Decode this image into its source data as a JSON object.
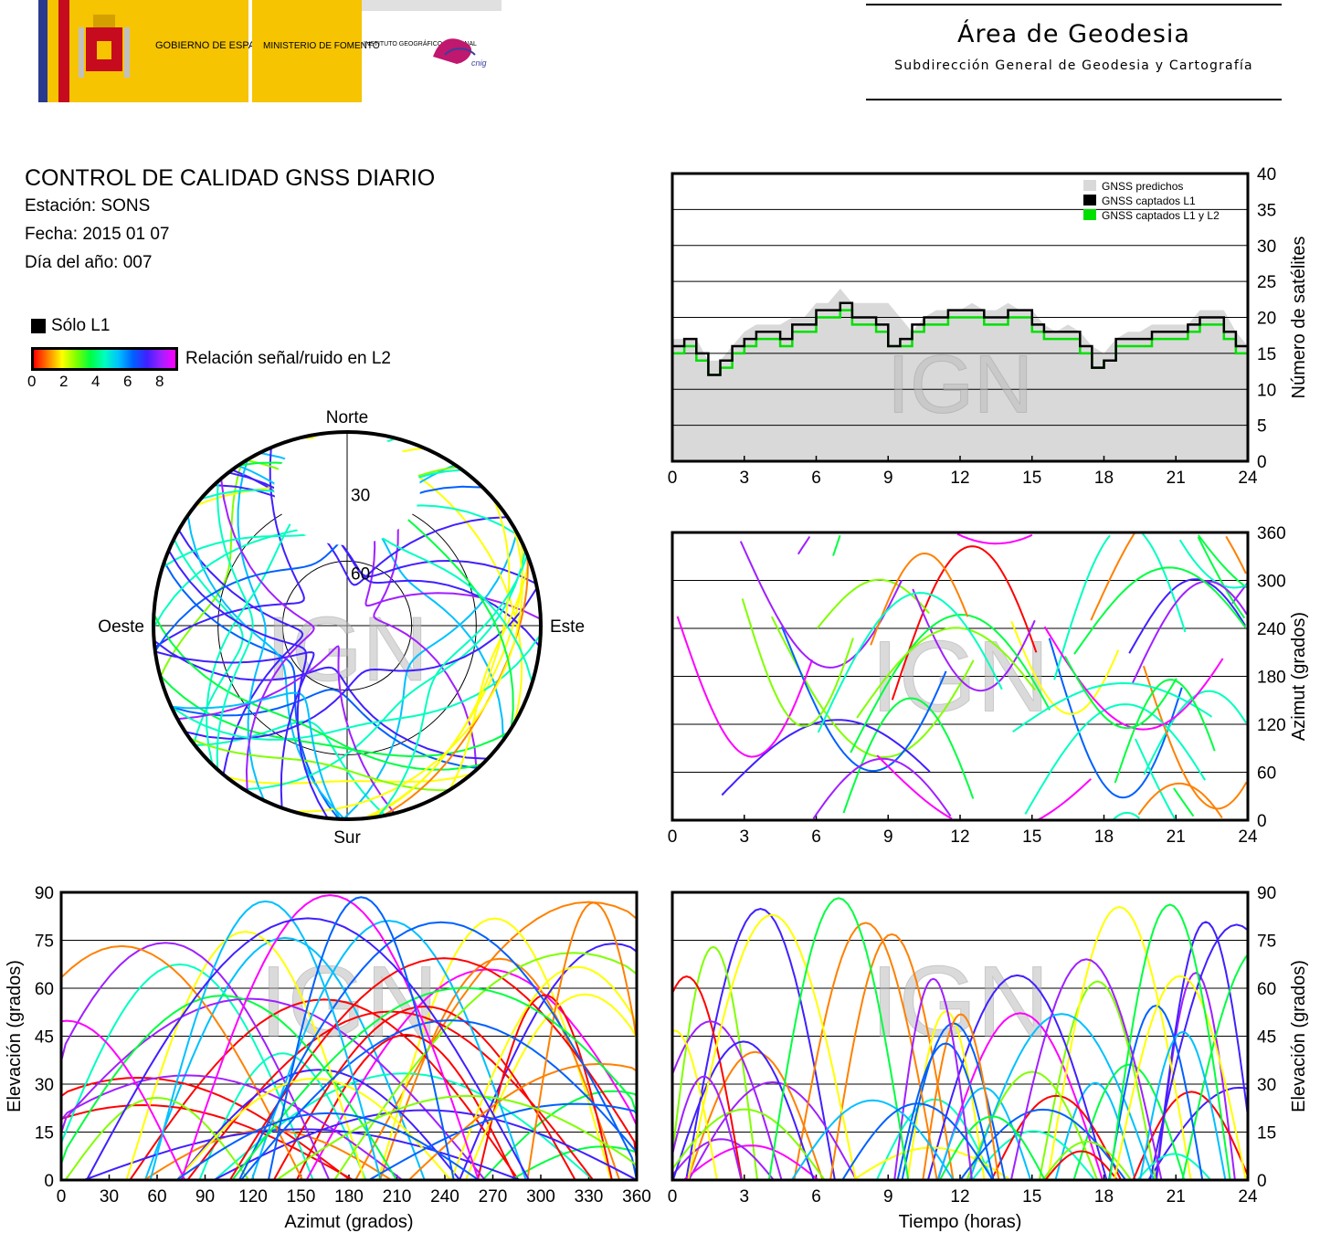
{
  "header": {
    "logo": {
      "gobierno": "GOBIERNO DE ESPAÑA",
      "ministerio": "MINISTERIO DE FOMENTO",
      "instituto": "INSTITUTO GEOGRÁFICO NACIONAL",
      "cnig": "cnig"
    },
    "area_title": "Área de Geodesia",
    "area_subtitle": "Subdirección General de Geodesia y Cartografía"
  },
  "info": {
    "title": "CONTROL DE CALIDAD GNSS DIARIO",
    "station": "Estación: SONS",
    "date": "Fecha: 2015 01 07",
    "doy": "Día del año: 007"
  },
  "legend": {
    "solo_l1": "Sólo L1",
    "snr_label": "Relación señal/ruido en L2",
    "snr_ticks": [
      "0",
      "2",
      "4",
      "6",
      "8"
    ]
  },
  "watermark": "IGN",
  "colors": {
    "predicted": "#d9d9d9",
    "l1": "#000000",
    "l1l2": "#00e000"
  },
  "chart_data": [
    {
      "type": "area",
      "id": "satellite-count",
      "x_ticks": [
        "0",
        "3",
        "6",
        "9",
        "12",
        "15",
        "18",
        "21",
        "24"
      ],
      "y_ticks": [
        "0",
        "5",
        "10",
        "15",
        "20",
        "25",
        "30",
        "35",
        "40"
      ],
      "ylabel": "Número de satélites",
      "xlim": [
        0,
        24
      ],
      "ylim": [
        0,
        40
      ],
      "legend": [
        "GNSS predichos",
        "GNSS captados L1",
        "GNSS captados L1 y L2"
      ],
      "legend_position": "top-right",
      "grid": true,
      "series": [
        {
          "name": "GNSS predichos",
          "x": [
            0,
            1,
            1.5,
            2,
            2.5,
            3,
            3.5,
            4,
            4.5,
            5,
            5.5,
            6,
            6.5,
            7,
            7.5,
            8,
            8.5,
            9,
            9.5,
            10,
            10.5,
            11,
            11.5,
            12,
            12.5,
            13,
            13.5,
            14,
            14.5,
            15,
            15.5,
            16,
            16.5,
            17,
            17.5,
            18,
            18.5,
            19,
            19.5,
            20,
            20.5,
            21,
            21.5,
            22,
            22.5,
            23,
            23.5,
            24
          ],
          "values": [
            17,
            17,
            14,
            14,
            16,
            18,
            19,
            19,
            19,
            20,
            20,
            22,
            22,
            24,
            22,
            22,
            22,
            22,
            20,
            18,
            20,
            21,
            21,
            21,
            22,
            21,
            21,
            22,
            21,
            21,
            19,
            18,
            19,
            18,
            16,
            15,
            17,
            18,
            18,
            19,
            19,
            19,
            19,
            21,
            21,
            21,
            18,
            16
          ]
        },
        {
          "name": "GNSS captados L1",
          "x": [
            0,
            0.5,
            1,
            1.5,
            2,
            2.5,
            3,
            3.5,
            4,
            4.5,
            5,
            5.5,
            6,
            6.5,
            7,
            7.5,
            8,
            8.5,
            9,
            9.5,
            10,
            10.5,
            11,
            11.5,
            12,
            12.5,
            13,
            13.5,
            14,
            14.5,
            15,
            15.5,
            16,
            16.5,
            17,
            17.5,
            18,
            18.5,
            19,
            19.5,
            20,
            20.5,
            21,
            21.5,
            22,
            22.5,
            23,
            23.5,
            24
          ],
          "values": [
            16,
            17,
            15,
            12,
            14,
            16,
            17,
            18,
            18,
            17,
            19,
            19,
            21,
            21,
            22,
            20,
            20,
            19,
            16,
            17,
            19,
            20,
            20,
            21,
            21,
            21,
            20,
            20,
            21,
            21,
            19,
            18,
            18,
            18,
            16,
            13,
            14,
            17,
            17,
            17,
            18,
            18,
            18,
            19,
            20,
            20,
            18,
            16,
            14
          ]
        },
        {
          "name": "GNSS captados L1 y L2",
          "x": [
            0,
            0.5,
            1,
            1.5,
            2,
            2.5,
            3,
            3.5,
            4,
            4.5,
            5,
            5.5,
            6,
            6.5,
            7,
            7.5,
            8,
            8.5,
            9,
            9.5,
            10,
            10.5,
            11,
            11.5,
            12,
            12.5,
            13,
            13.5,
            14,
            14.5,
            15,
            15.5,
            16,
            16.5,
            17,
            17.5,
            18,
            18.5,
            19,
            19.5,
            20,
            20.5,
            21,
            21.5,
            22,
            22.5,
            23,
            23.5,
            24
          ],
          "values": [
            15,
            16,
            14,
            12,
            13,
            15,
            16,
            17,
            17,
            16,
            18,
            18,
            20,
            20,
            21,
            19,
            19,
            18,
            16,
            16,
            18,
            19,
            19,
            20,
            20,
            20,
            19,
            19,
            20,
            20,
            18,
            17,
            17,
            17,
            15,
            13,
            14,
            16,
            16,
            16,
            17,
            17,
            17,
            18,
            19,
            19,
            17,
            15,
            14
          ]
        }
      ]
    },
    {
      "type": "scatter",
      "id": "azimuth-vs-time",
      "x_ticks": [
        "0",
        "3",
        "6",
        "9",
        "12",
        "15",
        "18",
        "21",
        "24"
      ],
      "y_ticks": [
        "0",
        "60",
        "120",
        "180",
        "240",
        "300",
        "360"
      ],
      "ylabel": "Azimut (grados)",
      "xlim": [
        0,
        24
      ],
      "ylim": [
        0,
        360
      ],
      "grid": true
    },
    {
      "type": "scatter",
      "id": "skyplot",
      "compass": {
        "n": "Norte",
        "s": "Sur",
        "e": "Este",
        "w": "Oeste"
      },
      "ring_labels": [
        "30",
        "60"
      ]
    },
    {
      "type": "scatter",
      "id": "elevation-vs-azimuth",
      "x_ticks": [
        "0",
        "30",
        "60",
        "90",
        "120",
        "150",
        "180",
        "210",
        "240",
        "270",
        "300",
        "330",
        "360"
      ],
      "y_ticks": [
        "0",
        "15",
        "30",
        "45",
        "60",
        "75",
        "90"
      ],
      "xlabel": "Azimut (grados)",
      "ylabel": "Elevación (grados)",
      "xlim": [
        0,
        360
      ],
      "ylim": [
        0,
        90
      ],
      "grid": true
    },
    {
      "type": "scatter",
      "id": "elevation-vs-time",
      "x_ticks": [
        "0",
        "3",
        "6",
        "9",
        "12",
        "15",
        "18",
        "21",
        "24"
      ],
      "y_ticks": [
        "0",
        "15",
        "30",
        "45",
        "60",
        "75",
        "90"
      ],
      "xlabel": "Tiempo (horas)",
      "ylabel": "Elevación (grados)",
      "xlim": [
        0,
        24
      ],
      "ylim": [
        0,
        90
      ],
      "grid": true
    }
  ]
}
